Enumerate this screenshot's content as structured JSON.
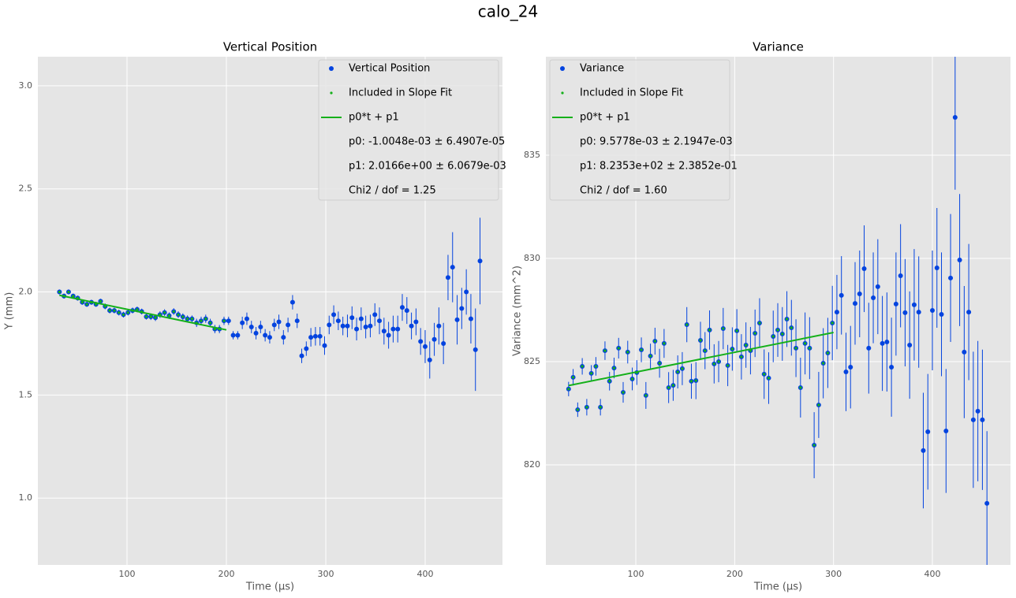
{
  "title": "calo_24",
  "chart_data": [
    {
      "type": "errorbar",
      "title": "Vertical Position",
      "x_label": "Time (µs)",
      "y_label": "Y (mm)",
      "x": [
        32,
        36.6,
        41.2,
        45.8,
        50.4,
        55,
        59.6,
        64.2,
        68.8,
        73.4,
        78,
        82.6,
        87.2,
        91.8,
        96.4,
        101,
        105.6,
        110.2,
        114.8,
        119.4,
        124,
        128.6,
        133.2,
        137.8,
        142.4,
        147,
        151.6,
        156.2,
        160.8,
        165.4,
        170,
        174.6,
        179.2,
        183.8,
        188.4,
        193,
        197.6,
        202.2,
        206.8,
        211.4,
        216,
        220.6,
        225.2,
        229.8,
        234.4,
        239,
        243.6,
        248.2,
        252.8,
        257.4,
        262,
        266.6,
        271.2,
        275.8,
        280.4,
        285,
        289.6,
        294.2,
        298.8,
        303.4,
        308,
        312.6,
        317.2,
        321.8,
        326.4,
        331,
        335.6,
        340.2,
        344.8,
        349.4,
        354,
        358.6,
        363.2,
        367.8,
        372.4,
        377,
        381.6,
        386.2,
        390.8,
        395.4,
        400,
        404.6,
        409.2,
        413.8,
        418.4,
        423,
        427.6,
        432.2,
        436.8,
        441.4,
        446,
        450.6,
        455.2
      ],
      "series": [
        {
          "name": "Vertical Position",
          "color": "#0343df",
          "values": [
            2.0,
            1.98,
            2.0,
            1.98,
            1.97,
            1.95,
            1.94,
            1.95,
            1.94,
            1.955,
            1.93,
            1.91,
            1.91,
            1.9,
            1.89,
            1.9,
            1.91,
            1.915,
            1.905,
            1.88,
            1.88,
            1.875,
            1.89,
            1.9,
            1.885,
            1.905,
            1.89,
            1.88,
            1.87,
            1.87,
            1.85,
            1.86,
            1.87,
            1.85,
            1.82,
            1.82,
            1.86,
            1.86,
            1.79,
            1.79,
            1.85,
            1.87,
            1.83,
            1.8,
            1.83,
            1.79,
            1.78,
            1.84,
            1.855,
            1.78,
            1.84,
            1.95,
            1.86,
            1.69,
            1.725,
            1.78,
            1.785,
            1.785,
            1.74,
            1.84,
            1.89,
            1.86,
            1.835,
            1.835,
            1.875,
            1.82,
            1.87,
            1.83,
            1.835,
            1.89,
            1.86,
            1.81,
            1.79,
            1.82,
            1.82,
            1.925,
            1.91,
            1.835,
            1.855,
            1.76,
            1.735,
            1.67,
            1.77,
            1.835,
            1.75,
            2.07,
            2.12,
            1.865,
            1.92,
            2.0,
            1.87,
            1.72,
            2.15
          ],
          "errors": [
            0.012,
            0.012,
            0.012,
            0.012,
            0.012,
            0.012,
            0.012,
            0.012,
            0.012,
            0.012,
            0.014,
            0.014,
            0.014,
            0.014,
            0.014,
            0.014,
            0.014,
            0.014,
            0.014,
            0.014,
            0.016,
            0.016,
            0.016,
            0.016,
            0.016,
            0.016,
            0.016,
            0.016,
            0.016,
            0.016,
            0.02,
            0.02,
            0.02,
            0.02,
            0.02,
            0.02,
            0.02,
            0.02,
            0.02,
            0.02,
            0.03,
            0.03,
            0.03,
            0.03,
            0.03,
            0.03,
            0.03,
            0.03,
            0.035,
            0.035,
            0.035,
            0.035,
            0.035,
            0.035,
            0.035,
            0.045,
            0.045,
            0.045,
            0.045,
            0.045,
            0.045,
            0.045,
            0.045,
            0.055,
            0.055,
            0.055,
            0.055,
            0.055,
            0.055,
            0.055,
            0.065,
            0.065,
            0.065,
            0.065,
            0.065,
            0.065,
            0.065,
            0.065,
            0.065,
            0.065,
            0.08,
            0.09,
            0.08,
            0.09,
            0.1,
            0.11,
            0.17,
            0.12,
            0.1,
            0.11,
            0.12,
            0.2,
            0.21
          ]
        },
        {
          "name": "Included in Slope Fit",
          "color": "#15b01a",
          "xmax": 200
        },
        {
          "name": "p0*t + p1",
          "color": "#15b01a",
          "x": [
            32,
            200
          ],
          "values": [
            1.984,
            1.816
          ]
        }
      ],
      "legend_notes": [
        "p0: -1.0048e-03 ± 6.4907e-05",
        "p1: 2.0166e+00 ± 6.0679e-03",
        "Chi2 / dof = 1.25"
      ],
      "legend_loc": "upper right",
      "xlim": [
        10.3,
        477.8
      ],
      "ylim": [
        0.676,
        3.141
      ],
      "xticks": [
        100,
        200,
        300,
        400
      ],
      "yticks": [
        {
          "value": 1,
          "label": "1.0"
        },
        1.5,
        {
          "value": 2,
          "label": "2.0"
        },
        2.5,
        {
          "value": 3,
          "label": "3.0"
        }
      ],
      "grid": true
    },
    {
      "type": "errorbar",
      "title": "Variance",
      "x_label": "Time (µs)",
      "y_label": "Variance (mm^2)",
      "x": [
        32,
        36.6,
        41.2,
        45.8,
        50.4,
        55,
        59.6,
        64.2,
        68.8,
        73.4,
        78,
        82.6,
        87.2,
        91.8,
        96.4,
        101,
        105.6,
        110.2,
        114.8,
        119.4,
        124,
        128.6,
        133.2,
        137.8,
        142.4,
        147,
        151.6,
        156.2,
        160.8,
        165.4,
        170,
        174.6,
        179.2,
        183.8,
        188.4,
        193,
        197.6,
        202.2,
        206.8,
        211.4,
        216,
        220.6,
        225.2,
        229.8,
        234.4,
        239,
        243.6,
        248.2,
        252.8,
        257.4,
        262,
        266.6,
        271.2,
        275.8,
        280.4,
        285,
        289.6,
        294.2,
        298.8,
        303.4,
        308,
        312.6,
        317.2,
        321.8,
        326.4,
        331,
        335.6,
        340.2,
        344.8,
        349.4,
        354,
        358.6,
        363.2,
        367.8,
        372.4,
        377,
        381.6,
        386.2,
        390.8,
        395.4,
        400,
        404.6,
        409.2,
        413.8,
        418.4,
        423,
        427.6,
        432.2,
        436.8,
        441.4,
        446,
        450.6,
        455.2
      ],
      "series": [
        {
          "name": "Variance",
          "color": "#0343df",
          "values": [
            823.67,
            824.24,
            822.67,
            824.77,
            822.79,
            824.43,
            824.77,
            822.79,
            825.53,
            824.05,
            824.69,
            825.65,
            823.51,
            825.46,
            824.16,
            824.47,
            825.57,
            823.36,
            825.27,
            825.99,
            824.92,
            825.88,
            823.74,
            823.85,
            824.5,
            824.66,
            826.79,
            824.05,
            824.08,
            826.03,
            825.53,
            826.53,
            824.89,
            825.0,
            826.6,
            824.81,
            825.61,
            826.49,
            825.23,
            825.8,
            825.53,
            826.37,
            826.87,
            824.39,
            824.2,
            826.22,
            826.53,
            826.34,
            827.06,
            826.64,
            825.65,
            823.74,
            825.88,
            825.65,
            820.95,
            822.9,
            824.92,
            825.42,
            826.87,
            827.4,
            828.21,
            824.5,
            824.73,
            827.82,
            828.28,
            829.5,
            825.65,
            828.09,
            828.63,
            825.88,
            825.95,
            824.73,
            827.79,
            829.16,
            827.37,
            825.8,
            827.75,
            827.4,
            820.69,
            821.6,
            827.48,
            829.54,
            827.29,
            821.64,
            829.05,
            836.83,
            829.92,
            825.46,
            827.4,
            822.18,
            822.6,
            822.18,
            818.13
          ],
          "errors": [
            0.35,
            0.4,
            0.35,
            0.4,
            0.4,
            0.4,
            0.45,
            0.4,
            0.45,
            0.45,
            0.5,
            0.5,
            0.5,
            0.55,
            0.55,
            0.6,
            0.6,
            0.65,
            0.6,
            0.65,
            0.7,
            0.7,
            0.75,
            0.75,
            0.8,
            0.8,
            0.85,
            0.85,
            0.9,
            0.9,
            0.9,
            0.95,
            0.95,
            1.0,
            1.0,
            1.0,
            1.05,
            1.05,
            1.1,
            1.1,
            1.15,
            1.15,
            1.2,
            1.2,
            1.25,
            1.25,
            1.3,
            1.3,
            1.35,
            1.35,
            1.4,
            1.45,
            1.5,
            1.5,
            1.6,
            1.6,
            1.7,
            1.7,
            1.8,
            1.8,
            1.9,
            1.9,
            2.0,
            2.0,
            2.1,
            2.1,
            2.2,
            2.2,
            2.3,
            2.3,
            2.4,
            2.4,
            2.5,
            2.5,
            2.6,
            2.6,
            2.7,
            2.7,
            2.8,
            2.8,
            2.9,
            2.9,
            3.0,
            3.0,
            3.1,
            3.5,
            3.2,
            3.2,
            3.3,
            3.3,
            3.4,
            3.4,
            3.5
          ]
        },
        {
          "name": "Included in Slope Fit",
          "color": "#15b01a",
          "xmax": 300
        },
        {
          "name": "p0*t + p1",
          "color": "#15b01a",
          "x": [
            32,
            300
          ],
          "values": [
            823.84,
            826.41
          ]
        }
      ],
      "legend_notes": [
        "p0: 9.5778e-03 ± 2.1947e-03",
        "p1: 8.2353e+02 ± 2.3852e-01",
        "Chi2 / dof = 1.60"
      ],
      "legend_loc": "upper left",
      "xlim": [
        9.0,
        479.0
      ],
      "ylim": [
        815.15,
        839.77
      ],
      "xticks": [
        100,
        200,
        300,
        400
      ],
      "yticks": [
        820,
        825,
        830,
        835
      ],
      "grid": true
    }
  ]
}
